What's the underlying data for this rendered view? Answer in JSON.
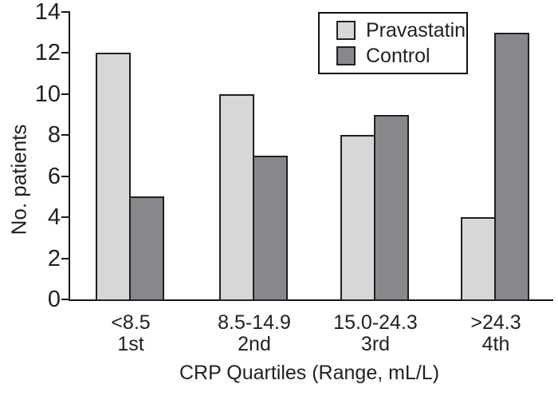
{
  "chart_data": {
    "type": "bar",
    "title": "",
    "ylabel": "No. patients",
    "xlabel": "CRP Quartiles (Range, mL/L)",
    "categories": [
      {
        "range": "<8.5",
        "ordinal": "1st"
      },
      {
        "range": "8.5-14.9",
        "ordinal": "2nd"
      },
      {
        "range": "15.0-24.3",
        "ordinal": "3rd"
      },
      {
        "range": ">24.3",
        "ordinal": "4th"
      }
    ],
    "series": [
      {
        "name": "Pravastatin",
        "color": "#d6d7d8",
        "values": [
          12,
          10,
          8,
          4
        ]
      },
      {
        "name": "Control",
        "color": "#86888b",
        "values": [
          5,
          7,
          9,
          13
        ]
      }
    ],
    "ylim": [
      0,
      14
    ],
    "yticks": [
      0,
      2,
      4,
      6,
      8,
      10,
      12,
      14
    ],
    "grid": false,
    "legend_position": "top-center",
    "bar_border_color": "#231f20",
    "axis_color": "#161616"
  }
}
